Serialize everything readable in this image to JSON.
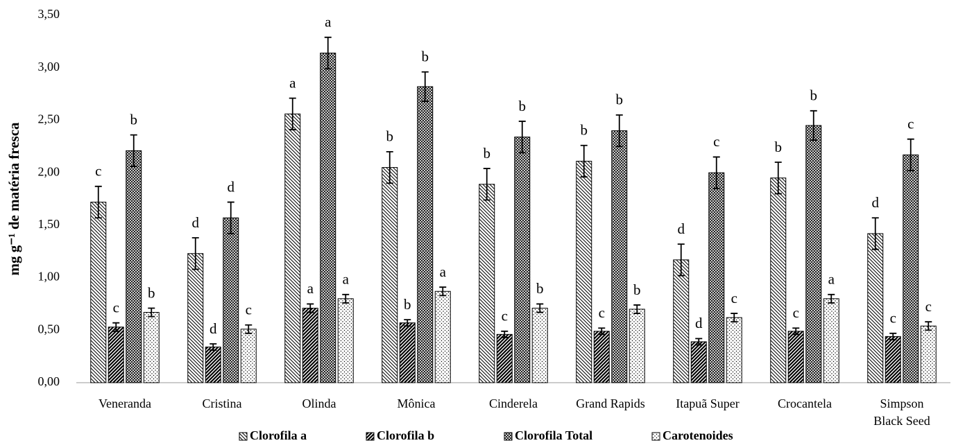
{
  "chart_data": {
    "type": "bar",
    "ylabel": "mg g⁻¹ de matéria fresca",
    "categories": [
      "Veneranda",
      "Cristina",
      "Olinda",
      "Mônica",
      "Cinderela",
      "Grand Rapids",
      "Itapuã Super",
      "Crocantela",
      "Simpson Black Seed"
    ],
    "series": [
      {
        "name": "Clorofila a",
        "color": "#000000",
        "values": [
          1.72,
          1.23,
          2.56,
          2.05,
          1.89,
          2.11,
          1.17,
          1.95,
          1.42
        ],
        "errors": [
          0.15,
          0.15,
          0.15,
          0.15,
          0.15,
          0.15,
          0.15,
          0.15,
          0.15
        ],
        "letters": [
          "c",
          "d",
          "a",
          "b",
          "b",
          "b",
          "d",
          "b",
          "d"
        ]
      },
      {
        "name": "Clorofila b",
        "color": "#000000",
        "values": [
          0.53,
          0.34,
          0.71,
          0.57,
          0.46,
          0.49,
          0.39,
          0.49,
          0.44
        ],
        "errors": [
          0.04,
          0.03,
          0.04,
          0.03,
          0.03,
          0.03,
          0.03,
          0.03,
          0.03
        ],
        "letters": [
          "c",
          "d",
          "a",
          "b",
          "c",
          "c",
          "d",
          "c",
          "c"
        ]
      },
      {
        "name": "Clorofila Total",
        "color": "#000000",
        "values": [
          2.21,
          1.57,
          3.14,
          2.82,
          2.34,
          2.4,
          2.0,
          2.45,
          2.17
        ],
        "errors": [
          0.15,
          0.15,
          0.15,
          0.14,
          0.15,
          0.15,
          0.15,
          0.14,
          0.15
        ],
        "letters": [
          "b",
          "d",
          "a",
          "b",
          "b",
          "b",
          "c",
          "b",
          "c"
        ]
      },
      {
        "name": "Carotenoides",
        "color": "#000000",
        "values": [
          0.67,
          0.51,
          0.8,
          0.87,
          0.71,
          0.7,
          0.62,
          0.8,
          0.54
        ],
        "errors": [
          0.04,
          0.04,
          0.04,
          0.04,
          0.04,
          0.04,
          0.04,
          0.04,
          0.04
        ],
        "letters": [
          "b",
          "c",
          "a",
          "a",
          "b",
          "b",
          "c",
          "a",
          "c"
        ]
      }
    ],
    "ylim": [
      0,
      3.5
    ],
    "yticks": [
      {
        "value": 0,
        "label": "0,00"
      },
      {
        "value": 0.5,
        "label": "0,50"
      },
      {
        "value": 1,
        "label": "1,00"
      },
      {
        "value": 1.5,
        "label": "1,50"
      },
      {
        "value": 2,
        "label": "2,00"
      },
      {
        "value": 2.5,
        "label": "2,50"
      },
      {
        "value": 3,
        "label": "3,00"
      },
      {
        "value": 3.5,
        "label": "3,50"
      }
    ],
    "legend": "bottom"
  }
}
